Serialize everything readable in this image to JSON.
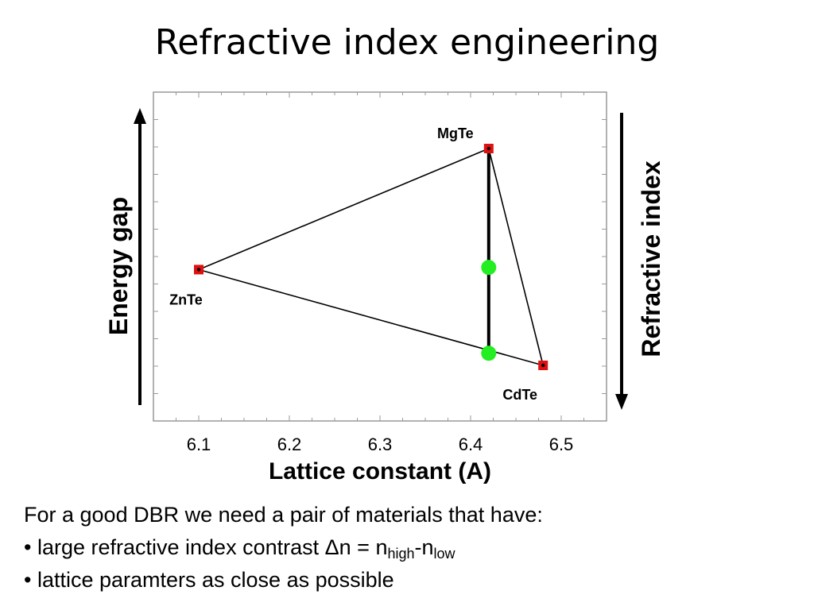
{
  "title": "Refractive index engineering",
  "chart_data": {
    "type": "scatter",
    "xlabel": "Lattice constant (A)",
    "ylabel": "Energy gap",
    "right_label": "Refractive index",
    "xlim": [
      6.05,
      6.55
    ],
    "x_ticks": [
      "6.1",
      "6.2",
      "6.3",
      "6.4",
      "6.5"
    ],
    "grid": false,
    "points": [
      {
        "name": "ZnTe",
        "x": 6.1,
        "y": 2.39
      },
      {
        "name": "MgTe",
        "x": 6.42,
        "y": 3.49
      },
      {
        "name": "CdTe",
        "x": 6.48,
        "y": 1.52
      }
    ],
    "mixed_points": [
      {
        "x": 6.42,
        "y": 2.41
      },
      {
        "x": 6.42,
        "y": 1.63
      }
    ],
    "colors": {
      "endpoint": "#e01010",
      "mixed": "#22ee22",
      "line": "#000000"
    }
  },
  "body": {
    "intro": "For a good DBR we need a pair of materials that have:",
    "bullet1_prefix": "• large refractive index contrast Δn = n",
    "sub_high": "high",
    "dash": "-n",
    "sub_low": "low",
    "bullet2": "• lattice paramters as close as possible"
  }
}
